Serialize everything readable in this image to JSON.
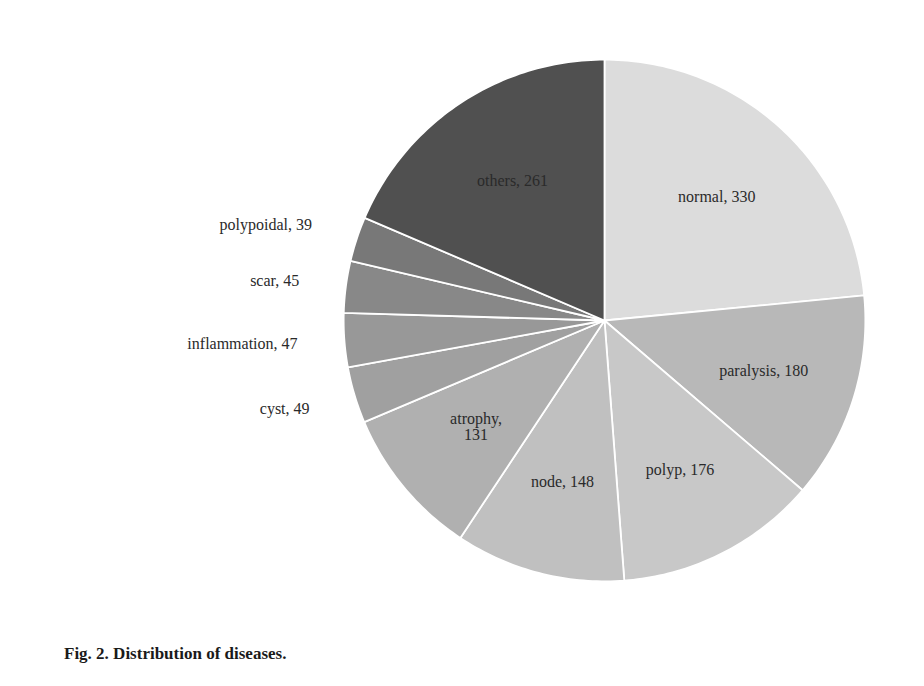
{
  "chart_data": {
    "type": "pie",
    "title": "Fig. 2. Distribution of diseases.",
    "categories": [
      "normal",
      "paralysis",
      "polyp",
      "node",
      "atrophy",
      "cyst",
      "inflammation",
      "scar",
      "polypoidal",
      "others"
    ],
    "values": [
      330,
      180,
      176,
      148,
      131,
      49,
      47,
      45,
      39,
      261
    ],
    "colors": [
      "#dcdcdc",
      "#b8b8b8",
      "#c8c8c8",
      "#c0c0c0",
      "#b0b0b0",
      "#a0a0a0",
      "#989898",
      "#888888",
      "#787878",
      "#505050"
    ],
    "data_labels": true,
    "value_labels": [
      "normal, 330",
      "paralysis, 180",
      "polyp, 176",
      "node, 148",
      "atrophy,\n131",
      "cyst, 49",
      "inflammation, 47",
      "scar, 45",
      "polypoidal, 39",
      "others, 261"
    ]
  }
}
